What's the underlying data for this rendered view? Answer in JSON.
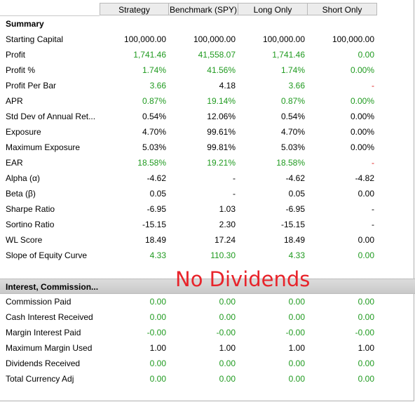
{
  "columns": [
    "Strategy",
    "Benchmark (SPY)",
    "Long Only",
    "Short Only"
  ],
  "sections": [
    {
      "title": "Summary",
      "rows": [
        {
          "label": "Starting Capital",
          "values": [
            "100,000.00",
            "100,000.00",
            "100,000.00",
            "100,000.00"
          ],
          "colors": [
            "black",
            "black",
            "black",
            "black"
          ]
        },
        {
          "label": "Profit",
          "values": [
            "1,741.46",
            "41,558.07",
            "1,741.46",
            "0.00"
          ],
          "colors": [
            "green",
            "green",
            "green",
            "green"
          ]
        },
        {
          "label": "Profit %",
          "values": [
            "1.74%",
            "41.56%",
            "1.74%",
            "0.00%"
          ],
          "colors": [
            "green",
            "green",
            "green",
            "green"
          ]
        },
        {
          "label": "Profit Per Bar",
          "values": [
            "3.66",
            "4.18",
            "3.66",
            "-"
          ],
          "colors": [
            "green",
            "black",
            "green",
            "red"
          ]
        },
        {
          "label": "APR",
          "values": [
            "0.87%",
            "19.14%",
            "0.87%",
            "0.00%"
          ],
          "colors": [
            "green",
            "green",
            "green",
            "green"
          ]
        },
        {
          "label": "Std Dev of Annual Ret...",
          "values": [
            "0.54%",
            "12.06%",
            "0.54%",
            "0.00%"
          ],
          "colors": [
            "black",
            "black",
            "black",
            "black"
          ]
        },
        {
          "label": "Exposure",
          "values": [
            "4.70%",
            "99.61%",
            "4.70%",
            "0.00%"
          ],
          "colors": [
            "black",
            "black",
            "black",
            "black"
          ]
        },
        {
          "label": "Maximum Exposure",
          "values": [
            "5.03%",
            "99.81%",
            "5.03%",
            "0.00%"
          ],
          "colors": [
            "black",
            "black",
            "black",
            "black"
          ]
        },
        {
          "label": "EAR",
          "values": [
            "18.58%",
            "19.21%",
            "18.58%",
            "-"
          ],
          "colors": [
            "green",
            "green",
            "green",
            "red"
          ]
        },
        {
          "label": "Alpha (α)",
          "values": [
            "-4.62",
            "-",
            "-4.62",
            "-4.82"
          ],
          "colors": [
            "black",
            "black",
            "black",
            "black"
          ]
        },
        {
          "label": "Beta (β)",
          "values": [
            "0.05",
            "-",
            "0.05",
            "0.00"
          ],
          "colors": [
            "black",
            "black",
            "black",
            "black"
          ]
        },
        {
          "label": "Sharpe Ratio",
          "values": [
            "-6.95",
            "1.03",
            "-6.95",
            "-"
          ],
          "colors": [
            "black",
            "black",
            "black",
            "black"
          ]
        },
        {
          "label": "Sortino Ratio",
          "values": [
            "-15.15",
            "2.30",
            "-15.15",
            "-"
          ],
          "colors": [
            "black",
            "black",
            "black",
            "black"
          ]
        },
        {
          "label": "WL Score",
          "values": [
            "18.49",
            "17.24",
            "18.49",
            "0.00"
          ],
          "colors": [
            "black",
            "black",
            "black",
            "black"
          ]
        },
        {
          "label": "Slope of Equity Curve",
          "values": [
            "4.33",
            "110.30",
            "4.33",
            "0.00"
          ],
          "colors": [
            "green",
            "green",
            "green",
            "green"
          ]
        }
      ]
    },
    {
      "title": "Interest, Commission...",
      "rows": [
        {
          "label": "Commission Paid",
          "values": [
            "0.00",
            "0.00",
            "0.00",
            "0.00"
          ],
          "colors": [
            "green",
            "green",
            "green",
            "green"
          ]
        },
        {
          "label": "Cash Interest Received",
          "values": [
            "0.00",
            "0.00",
            "0.00",
            "0.00"
          ],
          "colors": [
            "green",
            "green",
            "green",
            "green"
          ]
        },
        {
          "label": "Margin Interest Paid",
          "values": [
            "-0.00",
            "-0.00",
            "-0.00",
            "-0.00"
          ],
          "colors": [
            "green",
            "green",
            "green",
            "green"
          ]
        },
        {
          "label": "Maximum Margin Used",
          "values": [
            "1.00",
            "1.00",
            "1.00",
            "1.00"
          ],
          "colors": [
            "black",
            "black",
            "black",
            "black"
          ]
        },
        {
          "label": "Dividends Received",
          "values": [
            "0.00",
            "0.00",
            "0.00",
            "0.00"
          ],
          "colors": [
            "green",
            "green",
            "green",
            "green"
          ]
        },
        {
          "label": "Total Currency Adj",
          "values": [
            "0.00",
            "0.00",
            "0.00",
            "0.00"
          ],
          "colors": [
            "green",
            "green",
            "green",
            "green"
          ]
        }
      ]
    }
  ],
  "annotation": {
    "text": "No Dividends",
    "color": "#e8242b"
  }
}
